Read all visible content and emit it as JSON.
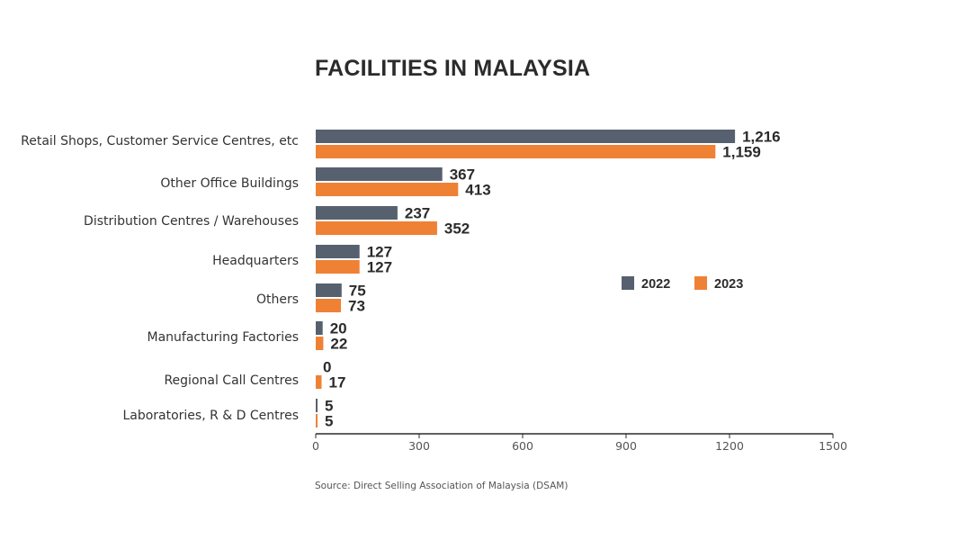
{
  "chart_data": {
    "type": "bar",
    "orientation": "horizontal",
    "title": "FACILITIES IN MALAYSIA",
    "categories": [
      "Retail Shops, Customer Service Centres, etc",
      "Other Office Buildings",
      "Distribution Centres / Warehouses",
      "Headquarters",
      "Others",
      "Manufacturing Factories",
      "Regional Call Centres",
      "Laboratories, R & D Centres"
    ],
    "series": [
      {
        "name": "2022",
        "color": "#56606f",
        "values": [
          1216,
          367,
          237,
          127,
          75,
          20,
          0,
          5
        ],
        "labels": [
          "1,216",
          "367",
          "237",
          "127",
          "75",
          "20",
          "0",
          "5"
        ]
      },
      {
        "name": "2023",
        "color": "#ef8135",
        "values": [
          1159,
          413,
          352,
          127,
          73,
          22,
          17,
          5
        ],
        "labels": [
          "1,159",
          "413",
          "352",
          "127",
          "73",
          "22",
          "17",
          "5"
        ]
      }
    ],
    "xlim": [
      0,
      1500
    ],
    "xticks": [
      0,
      300,
      600,
      900,
      1200,
      1500
    ],
    "xtick_labels": [
      "0",
      "300",
      "600",
      "900",
      "1200",
      "1500"
    ],
    "xlabel": "",
    "ylabel": "",
    "grid": false,
    "legend_position": "right"
  },
  "source": "Source: Direct Selling Association of Malaysia (DSAM)"
}
